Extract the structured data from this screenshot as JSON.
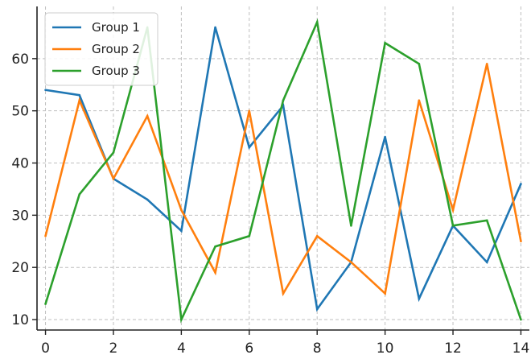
{
  "chart_data": {
    "type": "line",
    "title": "",
    "xlabel": "",
    "ylabel": "",
    "x": [
      0,
      1,
      2,
      3,
      4,
      5,
      6,
      7,
      8,
      9,
      10,
      11,
      12,
      13,
      14
    ],
    "xlim": [
      -0.25,
      14.25
    ],
    "ylim": [
      8,
      70
    ],
    "x_ticks": [
      0,
      2,
      4,
      6,
      8,
      10,
      12,
      14
    ],
    "y_ticks": [
      10,
      20,
      30,
      40,
      50,
      60
    ],
    "grid": true,
    "legend_position": "top-left",
    "series": [
      {
        "name": "Group 1",
        "color": "#1f77b4",
        "values": [
          54,
          53,
          37,
          33,
          27,
          66,
          43,
          51,
          12,
          21,
          45,
          14,
          28,
          21,
          36
        ]
      },
      {
        "name": "Group 2",
        "color": "#ff7f0e",
        "values": [
          26,
          52,
          37,
          49,
          31,
          19,
          50,
          15,
          26,
          21,
          15,
          52,
          31,
          59,
          25
        ]
      },
      {
        "name": "Group 3",
        "color": "#2ca02c",
        "values": [
          13,
          34,
          42,
          66,
          10,
          24,
          26,
          52,
          67,
          28,
          63,
          59,
          28,
          29,
          10
        ]
      }
    ]
  }
}
